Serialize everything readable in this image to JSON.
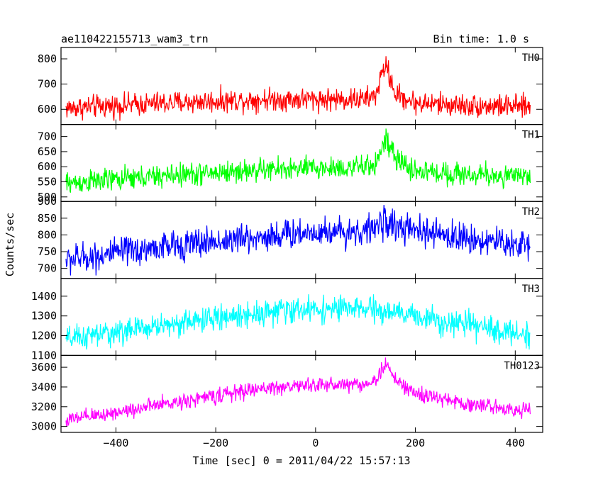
{
  "chart_data": {
    "type": "line",
    "title": "ae110422155713_wam3_trn",
    "bin_time_label": "Bin time: 1.0 s",
    "xlabel": "Time [sec] 0 = 2011/04/22 15:57:13",
    "ylabel": "Counts/sec",
    "xlim": [
      -510,
      455
    ],
    "x_range_data": [
      -500,
      430
    ],
    "x_ticks": [
      -400,
      -200,
      0,
      200,
      400
    ],
    "x_tick_labels": [
      "−400",
      "−200",
      "0",
      "200",
      "400"
    ],
    "grid": false,
    "panels": [
      {
        "name": "TH0",
        "color": "#ff0000",
        "ylim": [
          540,
          845
        ],
        "y_ticks": [
          600,
          700,
          800
        ],
        "y_tick_labels": [
          "600",
          "700",
          "800"
        ],
        "trend": [
          [
            -500,
            605
          ],
          [
            -300,
            625
          ],
          [
            -100,
            640
          ],
          [
            0,
            640
          ],
          [
            100,
            640
          ],
          [
            120,
            655
          ],
          [
            140,
            780
          ],
          [
            160,
            660
          ],
          [
            200,
            625
          ],
          [
            300,
            615
          ],
          [
            430,
            610
          ]
        ],
        "noise": 32
      },
      {
        "name": "TH1",
        "color": "#00ff00",
        "ylim": [
          485,
          740
        ],
        "y_ticks": [
          500,
          550,
          600,
          650,
          700
        ],
        "y_tick_labels": [
          "500",
          "550",
          "600",
          "650",
          "700"
        ],
        "trend": [
          [
            -500,
            545
          ],
          [
            -300,
            570
          ],
          [
            -100,
            590
          ],
          [
            0,
            595
          ],
          [
            100,
            598
          ],
          [
            120,
            610
          ],
          [
            140,
            690
          ],
          [
            160,
            625
          ],
          [
            200,
            585
          ],
          [
            300,
            575
          ],
          [
            430,
            565
          ]
        ],
        "noise": 27
      },
      {
        "name": "TH2",
        "color": "#0000ff",
        "ylim": [
          670,
          900
        ],
        "y_ticks": [
          700,
          750,
          800,
          850,
          900
        ],
        "y_tick_labels": [
          "700",
          "750",
          "800",
          "850",
          "900"
        ],
        "trend": [
          [
            -500,
            725
          ],
          [
            -300,
            765
          ],
          [
            -100,
            795
          ],
          [
            0,
            810
          ],
          [
            100,
            810
          ],
          [
            140,
            840
          ],
          [
            180,
            815
          ],
          [
            300,
            790
          ],
          [
            430,
            768
          ]
        ],
        "noise": 32
      },
      {
        "name": "TH3",
        "color": "#00ffff",
        "ylim": [
          1100,
          1490
        ],
        "y_ticks": [
          1100,
          1200,
          1300,
          1400
        ],
        "y_tick_labels": [
          "1100",
          "1200",
          "1300",
          "1400"
        ],
        "trend": [
          [
            -500,
            1180
          ],
          [
            -300,
            1255
          ],
          [
            -100,
            1320
          ],
          [
            0,
            1335
          ],
          [
            100,
            1335
          ],
          [
            200,
            1300
          ],
          [
            300,
            1255
          ],
          [
            430,
            1200
          ]
        ],
        "noise": 45
      },
      {
        "name": "TH0123",
        "color": "#ff00ff",
        "ylim": [
          2940,
          3720
        ],
        "y_ticks": [
          3000,
          3200,
          3400,
          3600
        ],
        "y_tick_labels": [
          "3000",
          "3200",
          "3400",
          "3600"
        ],
        "trend": [
          [
            -500,
            3060
          ],
          [
            -300,
            3230
          ],
          [
            -100,
            3390
          ],
          [
            0,
            3420
          ],
          [
            100,
            3430
          ],
          [
            120,
            3460
          ],
          [
            140,
            3640
          ],
          [
            160,
            3470
          ],
          [
            200,
            3330
          ],
          [
            300,
            3230
          ],
          [
            430,
            3160
          ]
        ],
        "noise": 55
      }
    ]
  }
}
